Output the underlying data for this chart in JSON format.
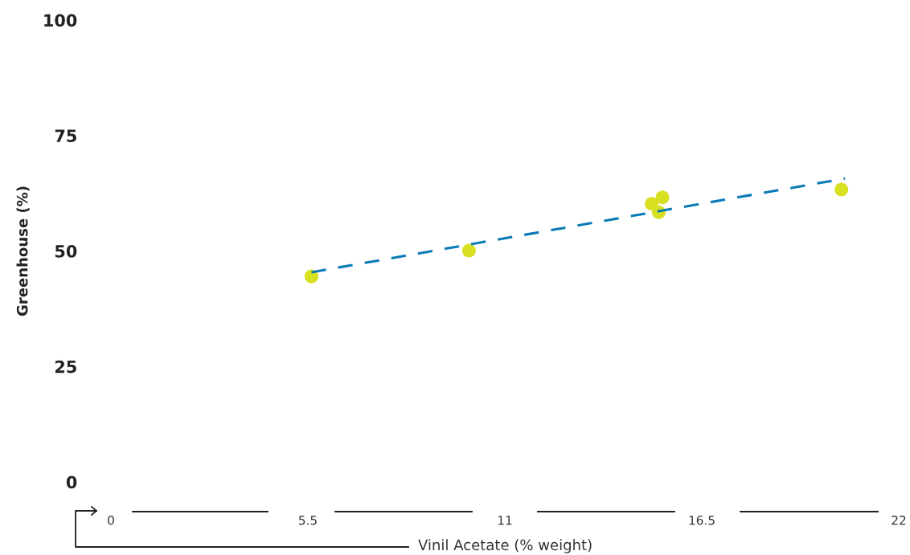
{
  "chart_data": {
    "type": "scatter",
    "xlabel": "Vinil Acetate (% weight)",
    "ylabel": "Greenhouse (%)",
    "xlim": [
      0,
      22
    ],
    "xticks": [
      0,
      5.5,
      11,
      16.5,
      22
    ],
    "ylim": [
      0,
      100
    ],
    "yticks": [
      0,
      25,
      50,
      75,
      100
    ],
    "grid": false,
    "marker": "circle",
    "series": [
      {
        "color": "#d7e021",
        "x": [
          5.6,
          10.0,
          15.1,
          15.4,
          15.3,
          20.4
        ],
        "values": [
          44.5,
          50.1,
          60.2,
          61.6,
          58.4,
          63.3
        ]
      },
      {
        "type": "line",
        "color": "#0a7bb5",
        "line_style": "dashed",
        "marker": "none",
        "x": [
          5.6,
          20.5
        ],
        "values": [
          45.4,
          65.7
        ]
      }
    ]
  }
}
